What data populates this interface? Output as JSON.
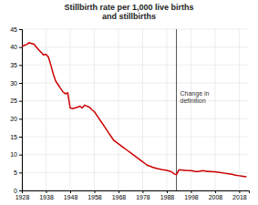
{
  "chart_data": {
    "type": "line",
    "title": "Stillbirth rate per 1,000 live births\nand stillbirths",
    "color": "#cc0000",
    "grid": true,
    "xlim": [
      1928,
      2022
    ],
    "ylim": [
      0,
      45
    ],
    "xticks": [
      1928,
      1938,
      1948,
      1958,
      1968,
      1978,
      1988,
      1998,
      2008,
      2018
    ],
    "yticks": [
      0,
      5,
      10,
      15,
      20,
      25,
      30,
      35,
      40,
      45
    ],
    "vlines": [
      {
        "x": 1992,
        "color": "#555555"
      }
    ],
    "annotations": [
      {
        "text": "Change in\ndefinition",
        "x": 1993.5,
        "y": 26
      }
    ],
    "x": [
      1928,
      1929,
      1930,
      1931,
      1932,
      1933,
      1934,
      1935,
      1936,
      1937,
      1938,
      1939,
      1940,
      1941,
      1942,
      1943,
      1944,
      1945,
      1946,
      1947,
      1948,
      1949,
      1950,
      1951,
      1952,
      1953,
      1954,
      1955,
      1956,
      1957,
      1958,
      1959,
      1960,
      1961,
      1962,
      1963,
      1964,
      1965,
      1966,
      1967,
      1968,
      1969,
      1970,
      1971,
      1972,
      1973,
      1974,
      1975,
      1976,
      1977,
      1978,
      1979,
      1980,
      1981,
      1982,
      1983,
      1984,
      1985,
      1986,
      1987,
      1988,
      1989,
      1990,
      1991,
      1992,
      1993,
      1994,
      1995,
      1996,
      1997,
      1998,
      1999,
      2000,
      2001,
      2002,
      2003,
      2004,
      2005,
      2006,
      2007,
      2008,
      2009,
      2010,
      2011,
      2012,
      2013,
      2014,
      2015,
      2016,
      2017,
      2018,
      2019,
      2020,
      2021
    ],
    "values": [
      40.2,
      40.5,
      40.7,
      41.2,
      41.0,
      40.8,
      40.0,
      39.2,
      38.5,
      37.8,
      38.0,
      37.2,
      35.0,
      32.5,
      30.5,
      29.5,
      28.5,
      27.5,
      27.0,
      27.2,
      23.0,
      22.8,
      23.0,
      23.2,
      23.5,
      23.0,
      23.8,
      23.5,
      23.2,
      22.5,
      22.0,
      21.0,
      20.0,
      19.0,
      18.0,
      17.0,
      16.0,
      15.0,
      14.0,
      13.5,
      13.0,
      12.5,
      12.0,
      11.5,
      11.0,
      10.5,
      10.0,
      9.5,
      9.0,
      8.5,
      8.0,
      7.5,
      7.0,
      6.8,
      6.5,
      6.3,
      6.1,
      6.0,
      5.8,
      5.7,
      5.6,
      5.4,
      5.2,
      4.6,
      4.4,
      5.7,
      5.7,
      5.6,
      5.6,
      5.5,
      5.5,
      5.4,
      5.3,
      5.3,
      5.4,
      5.5,
      5.4,
      5.3,
      5.3,
      5.2,
      5.2,
      5.1,
      5.0,
      4.9,
      4.8,
      4.7,
      4.6,
      4.5,
      4.3,
      4.2,
      4.1,
      4.0,
      3.9,
      3.8
    ]
  }
}
